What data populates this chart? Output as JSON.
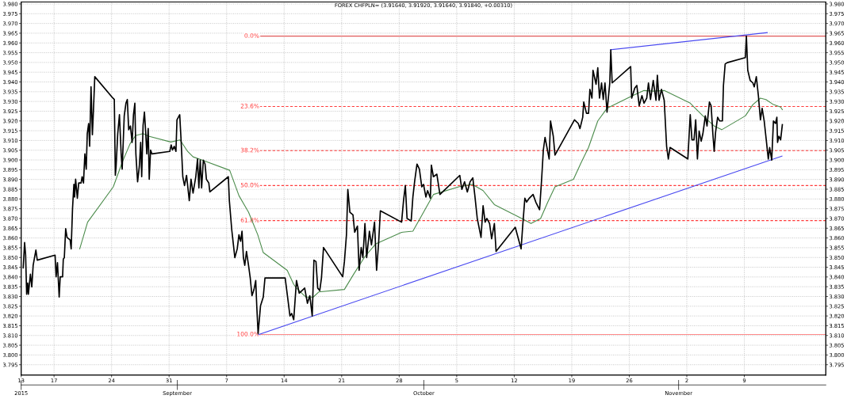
{
  "chart_data": {
    "type": "line",
    "title": "FOREX CHFPLN= (3.91640, 3.91920, 3.91640, 3.91840, +0.00310)",
    "xlim": [
      "2015-08-13T00:00",
      "2015-11-18T22:00"
    ],
    "xticks": [
      {
        "value": "2015-08-13",
        "label": "13"
      },
      {
        "value": "2015-08-17",
        "label": "17"
      },
      {
        "value": "2015-08-24",
        "label": "24"
      },
      {
        "value": "2015-08-31",
        "label": "31"
      },
      {
        "value": "2015-09-07",
        "label": "7"
      },
      {
        "value": "2015-09-14",
        "label": "14"
      },
      {
        "value": "2015-09-21",
        "label": "21"
      },
      {
        "value": "2015-09-28",
        "label": "28"
      },
      {
        "value": "2015-10-05",
        "label": "5"
      },
      {
        "value": "2015-10-12",
        "label": "12"
      },
      {
        "value": "2015-10-19",
        "label": "19"
      },
      {
        "value": "2015-10-26",
        "label": "26"
      },
      {
        "value": "2015-11-02",
        "label": "2"
      },
      {
        "value": "2015-11-09",
        "label": "9"
      }
    ],
    "x2lim": [
      "2015-08-13T00:00",
      "2015-11-18T22:00"
    ],
    "x2ticks": [
      {
        "value": "2015-08-13",
        "label": "2015"
      },
      {
        "value": "2015-09-01",
        "label": "September"
      },
      {
        "value": "2015-10-01",
        "label": "October"
      },
      {
        "value": "2015-11-01",
        "label": "November"
      }
    ],
    "ylim": [
      3.7897,
      3.981
    ],
    "yticks": [
      {
        "value": 3.795,
        "label": "3.795"
      },
      {
        "value": 3.8,
        "label": "3.800"
      },
      {
        "value": 3.805,
        "label": "3.805"
      },
      {
        "value": 3.81,
        "label": "3.810"
      },
      {
        "value": 3.815,
        "label": "3.815"
      },
      {
        "value": 3.82,
        "label": "3.820"
      },
      {
        "value": 3.825,
        "label": "3.825"
      },
      {
        "value": 3.83,
        "label": "3.830"
      },
      {
        "value": 3.835,
        "label": "3.835"
      },
      {
        "value": 3.84,
        "label": "3.840"
      },
      {
        "value": 3.845,
        "label": "3.845"
      },
      {
        "value": 3.85,
        "label": "3.850"
      },
      {
        "value": 3.855,
        "label": "3.855"
      },
      {
        "value": 3.86,
        "label": "3.860"
      },
      {
        "value": 3.865,
        "label": "3.865"
      },
      {
        "value": 3.87,
        "label": "3.870"
      },
      {
        "value": 3.875,
        "label": "3.875"
      },
      {
        "value": 3.88,
        "label": "3.880"
      },
      {
        "value": 3.885,
        "label": "3.885"
      },
      {
        "value": 3.89,
        "label": "3.890"
      },
      {
        "value": 3.895,
        "label": "3.895"
      },
      {
        "value": 3.9,
        "label": "3.900"
      },
      {
        "value": 3.905,
        "label": "3.905"
      },
      {
        "value": 3.91,
        "label": "3.910"
      },
      {
        "value": 3.915,
        "label": "3.915"
      },
      {
        "value": 3.92,
        "label": "3.920"
      },
      {
        "value": 3.925,
        "label": "3.925"
      },
      {
        "value": 3.93,
        "label": "3.930"
      },
      {
        "value": 3.935,
        "label": "3.935"
      },
      {
        "value": 3.94,
        "label": "3.940"
      },
      {
        "value": 3.945,
        "label": "3.945"
      },
      {
        "value": 3.95,
        "label": "3.950"
      },
      {
        "value": 3.955,
        "label": "3.955"
      },
      {
        "value": 3.96,
        "label": "3.960"
      },
      {
        "value": 3.965,
        "label": "3.965"
      },
      {
        "value": 3.97,
        "label": "3.970"
      },
      {
        "value": 3.975,
        "label": "3.975"
      },
      {
        "value": 3.98,
        "label": "3.980"
      }
    ],
    "y2lim": [
      3.7897,
      3.981
    ],
    "y2ticks": [
      {
        "value": 3.795,
        "label": "3.795"
      },
      {
        "value": 3.8,
        "label": "3.800"
      },
      {
        "value": 3.805,
        "label": "3.805"
      },
      {
        "value": 3.81,
        "label": "3.810"
      },
      {
        "value": 3.815,
        "label": "3.815"
      },
      {
        "value": 3.82,
        "label": "3.820"
      },
      {
        "value": 3.825,
        "label": "3.825"
      },
      {
        "value": 3.83,
        "label": "3.830"
      },
      {
        "value": 3.835,
        "label": "3.835"
      },
      {
        "value": 3.84,
        "label": "3.840"
      },
      {
        "value": 3.845,
        "label": "3.845"
      },
      {
        "value": 3.85,
        "label": "3.850"
      },
      {
        "value": 3.855,
        "label": "3.855"
      },
      {
        "value": 3.86,
        "label": "3.860"
      },
      {
        "value": 3.865,
        "label": "3.865"
      },
      {
        "value": 3.87,
        "label": "3.870"
      },
      {
        "value": 3.875,
        "label": "3.875"
      },
      {
        "value": 3.88,
        "label": "3.880"
      },
      {
        "value": 3.885,
        "label": "3.885"
      },
      {
        "value": 3.89,
        "label": "3.890"
      },
      {
        "value": 3.895,
        "label": "3.895"
      },
      {
        "value": 3.9,
        "label": "3.900"
      },
      {
        "value": 3.905,
        "label": "3.905"
      },
      {
        "value": 3.91,
        "label": "3.910"
      },
      {
        "value": 3.915,
        "label": "3.915"
      },
      {
        "value": 3.92,
        "label": "3.920"
      },
      {
        "value": 3.925,
        "label": "3.925"
      },
      {
        "value": 3.93,
        "label": "3.930"
      },
      {
        "value": 3.935,
        "label": "3.935"
      },
      {
        "value": 3.94,
        "label": "3.940"
      },
      {
        "value": 3.945,
        "label": "3.945"
      },
      {
        "value": 3.95,
        "label": "3.950"
      },
      {
        "value": 3.955,
        "label": "3.955"
      },
      {
        "value": 3.96,
        "label": "3.960"
      },
      {
        "value": 3.965,
        "label": "3.965"
      },
      {
        "value": 3.97,
        "label": "3.970"
      },
      {
        "value": 3.975,
        "label": "3.975"
      },
      {
        "value": 3.98,
        "label": "3.980"
      }
    ],
    "grid": true,
    "series": [
      {
        "color": "#000000",
        "x": [
          "2015-08-13T06:00",
          "2015-08-13T10:00",
          "2015-08-13T13:00",
          "2015-08-13T16:00",
          "2015-08-13T19:00",
          "2015-08-13T21:00",
          "2015-08-14T03:00",
          "2015-08-14T07:00",
          "2015-08-14T11:00",
          "2015-08-14T15:00",
          "2015-08-14T19:00",
          "2015-08-14T23:00",
          "2015-08-17T03:00",
          "2015-08-17T06:00",
          "2015-08-17T10:00",
          "2015-08-17T15:00",
          "2015-08-17T18:00",
          "2015-08-18T01:00",
          "2015-08-18T03:00",
          "2015-08-18T06:00",
          "2015-08-18T10:00",
          "2015-08-18T14:00",
          "2015-08-18T23:00",
          "2015-08-19T02:00",
          "2015-08-19T06:00",
          "2015-08-19T10:00",
          "2015-08-19T12:00",
          "2015-08-19T15:00",
          "2015-08-19T20:00",
          "2015-08-20T00:00",
          "2015-08-20T07:00",
          "2015-08-20T10:00",
          "2015-08-20T14:00",
          "2015-08-20T18:00",
          "2015-08-20T22:00",
          "2015-08-21T01:00",
          "2015-08-21T05:00",
          "2015-08-21T08:00",
          "2015-08-21T12:00",
          "2015-08-21T16:00",
          "2015-08-21T19:00",
          "2015-08-21T23:00",
          "2015-08-24T04:00",
          "2015-08-24T08:00",
          "2015-08-24T11:00",
          "2015-08-24T13:00",
          "2015-08-24T18:00",
          "2015-08-24T23:00",
          "2015-08-25T04:00",
          "2015-08-25T07:00",
          "2015-08-25T13:00",
          "2015-08-25T18:00",
          "2015-08-25T22:00",
          "2015-08-26T02:00",
          "2015-08-26T07:00",
          "2015-08-26T12:00",
          "2015-08-26T16:00",
          "2015-08-26T20:00",
          "2015-08-26T23:00",
          "2015-08-27T04:00",
          "2015-08-27T09:00",
          "2015-08-27T13:00",
          "2015-08-27T16:00",
          "2015-08-27T20:00",
          "2015-08-28T00:00",
          "2015-08-28T03:00",
          "2015-08-28T07:00",
          "2015-08-28T11:00",
          "2015-08-28T14:00",
          "2015-08-28T18:00",
          "2015-08-28T22:00",
          "2015-08-31T02:00",
          "2015-08-31T06:00",
          "2015-08-31T10:00",
          "2015-08-31T15:00",
          "2015-08-31T20:00",
          "2015-08-31T23:00",
          "2015-09-01T07:00",
          "2015-09-01T11:00",
          "2015-09-01T16:00",
          "2015-09-01T21:00",
          "2015-09-02T03:00",
          "2015-09-02T11:00",
          "2015-09-02T16:00",
          "2015-09-02T22:00",
          "2015-09-03T06:00",
          "2015-09-03T11:00",
          "2015-09-03T15:00",
          "2015-09-03T19:00",
          "2015-09-03T23:00",
          "2015-09-04T04:00",
          "2015-09-04T09:00",
          "2015-09-04T13:00",
          "2015-09-04T20:00",
          "2015-09-04T23:00",
          "2015-09-07T05:00",
          "2015-09-07T08:00",
          "2015-09-07T15:00",
          "2015-09-08T00:00",
          "2015-09-08T07:00",
          "2015-09-08T12:00",
          "2015-09-08T17:00",
          "2015-09-08T21:00",
          "2015-09-09T01:00",
          "2015-09-09T05:00",
          "2015-09-09T10:00",
          "2015-09-09T16:00",
          "2015-09-09T21:00",
          "2015-09-10T02:00",
          "2015-09-10T08:00",
          "2015-09-10T13:00",
          "2015-09-10T16:00",
          "2015-09-10T20:00",
          "2015-09-11T03:00",
          "2015-09-11T11:00",
          "2015-09-11T16:00",
          "2015-09-14T03:00",
          "2015-09-14T11:00",
          "2015-09-14T17:00",
          "2015-09-14T22:00",
          "2015-09-15T04:00",
          "2015-09-15T12:00",
          "2015-09-15T20:00",
          "2015-09-16T04:00",
          "2015-09-16T12:00",
          "2015-09-16T20:00",
          "2015-09-17T03:00",
          "2015-09-17T10:00",
          "2015-09-17T15:00",
          "2015-09-17T21:00",
          "2015-09-18T02:00",
          "2015-09-18T08:00",
          "2015-09-18T13:00",
          "2015-09-18T19:00",
          "2015-09-21T03:00",
          "2015-09-21T08:00",
          "2015-09-21T14:00",
          "2015-09-21T18:00",
          "2015-09-22T00:00",
          "2015-09-22T09:00",
          "2015-09-22T14:00",
          "2015-09-22T22:00",
          "2015-09-23T03:00",
          "2015-09-23T09:00",
          "2015-09-23T14:00",
          "2015-09-23T20:00",
          "2015-09-24T01:00",
          "2015-09-24T09:00",
          "2015-09-24T15:00",
          "2015-09-25T00:00",
          "2015-09-25T06:00",
          "2015-09-25T12:00",
          "2015-09-25T17:00",
          "2015-09-28T07:00",
          "2015-09-28T13:00",
          "2015-09-28T18:00",
          "2015-09-28T23:00",
          "2015-09-29T11:00",
          "2015-09-29T16:00",
          "2015-09-29T21:00",
          "2015-09-30T04:00",
          "2015-09-30T11:00",
          "2015-09-30T18:00",
          "2015-09-30T23:00",
          "2015-10-01T06:00",
          "2015-10-01T11:00",
          "2015-10-01T19:00",
          "2015-10-01T22:00",
          "2015-10-02T04:00",
          "2015-10-02T14:00",
          "2015-10-02T23:00",
          "2015-10-05T09:00",
          "2015-10-05T15:00",
          "2015-10-05T23:00",
          "2015-10-06T07:00",
          "2015-10-06T15:00",
          "2015-10-06T23:00",
          "2015-10-07T05:00",
          "2015-10-07T12:00",
          "2015-10-07T23:00",
          "2015-10-08T05:00",
          "2015-10-08T11:00",
          "2015-10-08T16:00",
          "2015-10-09T00:00",
          "2015-10-09T06:00",
          "2015-10-09T14:00",
          "2015-10-09T19:00",
          "2015-10-12T03:00",
          "2015-10-12T12:00",
          "2015-10-12T20:00",
          "2015-10-13T01:00",
          "2015-10-13T07:00",
          "2015-10-13T12:00",
          "2015-10-13T20:00",
          "2015-10-14T07:00",
          "2015-10-14T15:00",
          "2015-10-15T02:00",
          "2015-10-15T08:00",
          "2015-10-15T13:00",
          "2015-10-15T18:00",
          "2015-10-16T06:00",
          "2015-10-16T10:00",
          "2015-10-16T18:00",
          "2015-10-16T23:00",
          "2015-10-19T08:00",
          "2015-10-19T19:00",
          "2015-10-20T00:00",
          "2015-10-20T08:00",
          "2015-10-20T11:00",
          "2015-10-20T19:00",
          "2015-10-21T01:00",
          "2015-10-21T05:00",
          "2015-10-21T11:00",
          "2015-10-21T14:00",
          "2015-10-21T23:00",
          "2015-10-22T04:00",
          "2015-10-22T09:00",
          "2015-10-22T15:00",
          "2015-10-22T20:00",
          "2015-10-23T01:00",
          "2015-10-23T07:00",
          "2015-10-23T15:00",
          "2015-10-23T18:00",
          "2015-10-23T22:00",
          "2015-10-26T04:00",
          "2015-10-26T07:00",
          "2015-10-26T16:00",
          "2015-10-26T22:00",
          "2015-10-27T05:00",
          "2015-10-27T13:00",
          "2015-10-27T19:00",
          "2015-10-28T03:00",
          "2015-10-28T08:00",
          "2015-10-28T14:00",
          "2015-10-28T22:00",
          "2015-10-29T06:00",
          "2015-10-29T10:00",
          "2015-10-29T15:00",
          "2015-10-29T22:00",
          "2015-10-30T06:00",
          "2015-10-30T13:00",
          "2015-10-30T18:00",
          "2015-10-30T23:00",
          "2015-11-02T03:00",
          "2015-11-02T10:00",
          "2015-11-02T15:00",
          "2015-11-02T21:00",
          "2015-11-03T02:00",
          "2015-11-03T07:00",
          "2015-11-03T12:00",
          "2015-11-03T18:00",
          "2015-11-03T23:00",
          "2015-11-04T06:00",
          "2015-11-04T11:00",
          "2015-11-04T18:00",
          "2015-11-04T23:00",
          "2015-11-05T04:00",
          "2015-11-05T08:00",
          "2015-11-05T12:00",
          "2015-11-05T18:00",
          "2015-11-06T00:00",
          "2015-11-06T08:00",
          "2015-11-06T11:00",
          "2015-11-06T16:00",
          "2015-11-06T22:00",
          "2015-11-09T03:00",
          "2015-11-09T06:00",
          "2015-11-09T10:00",
          "2015-11-09T17:00",
          "2015-11-10T01:00",
          "2015-11-10T05:00",
          "2015-11-10T11:00",
          "2015-11-10T17:00",
          "2015-11-10T23:00",
          "2015-11-11T04:00",
          "2015-11-11T10:00",
          "2015-11-11T16:00",
          "2015-11-11T22:00",
          "2015-11-12T02:00",
          "2015-11-12T08:00",
          "2015-11-12T13:00",
          "2015-11-12T19:00",
          "2015-11-12T23:00",
          "2015-11-13T01:00",
          "2015-11-13T05:00",
          "2015-11-13T10:00",
          "2015-11-13T15:00"
        ],
        "values": [
          3.8447,
          3.8577,
          3.8512,
          3.8311,
          3.8369,
          3.8311,
          3.8414,
          3.8349,
          3.846,
          3.8499,
          3.8538,
          3.8486,
          3.8512,
          3.8401,
          3.8473,
          3.8297,
          3.8401,
          3.8401,
          3.8492,
          3.8499,
          3.8648,
          3.8603,
          3.859,
          3.8544,
          3.8752,
          3.8875,
          3.881,
          3.8901,
          3.8804,
          3.8882,
          3.8882,
          3.8914,
          3.8882,
          3.9031,
          3.8953,
          3.9135,
          3.9187,
          3.907,
          3.9375,
          3.9129,
          3.9252,
          3.9427,
          3.9317,
          3.931,
          3.8921,
          3.896,
          3.9135,
          3.9232,
          3.9031,
          3.8953,
          3.9226,
          3.9291,
          3.931,
          3.9155,
          3.9174,
          3.909,
          3.9232,
          3.9291,
          3.9031,
          3.8888,
          3.8966,
          3.909,
          3.8914,
          3.9177,
          3.9245,
          3.9161,
          3.9031,
          3.9161,
          3.8901,
          3.9051,
          3.9031,
          3.9044,
          3.9077,
          3.9051,
          3.907,
          3.9044,
          3.9206,
          3.9232,
          3.9103,
          3.8914,
          3.8869,
          3.8921,
          3.8791,
          3.8901,
          3.883,
          3.8914,
          3.9005,
          3.8856,
          3.8999,
          3.8856,
          3.8999,
          3.8979,
          3.8901,
          3.8882,
          3.8836,
          3.8914,
          3.8791,
          3.8642,
          3.8499,
          3.8544,
          3.8616,
          3.8583,
          3.8635,
          3.8499,
          3.846,
          3.8531,
          3.846,
          3.8395,
          3.8304,
          3.8336,
          3.8382,
          3.8252,
          3.8109,
          3.8252,
          3.8297,
          3.8395,
          3.8395,
          3.8284,
          3.82,
          3.8213,
          3.8181,
          3.8382,
          3.8317,
          3.833,
          3.8343,
          3.8265,
          3.8304,
          3.82,
          3.8486,
          3.8479,
          3.8343,
          3.833,
          3.8395,
          3.8551,
          3.8401,
          3.8479,
          3.8616,
          3.8849,
          3.8732,
          3.8719,
          3.8629,
          3.8661,
          3.8434,
          3.8551,
          3.8499,
          3.8674,
          3.8499,
          3.8635,
          3.8564,
          3.8681,
          3.8434,
          3.8577,
          3.8739,
          3.8681,
          3.8797,
          3.8869,
          3.87,
          3.8687,
          3.881,
          3.8888,
          3.8979,
          3.8953,
          3.8862,
          3.8875,
          3.881,
          3.8843,
          3.8804,
          3.8973,
          3.8914,
          3.8927,
          3.8823,
          3.8921,
          3.8849,
          3.8888,
          3.8836,
          3.8888,
          3.8908,
          3.8817,
          3.87,
          3.8603,
          3.8765,
          3.8681,
          3.87,
          3.8674,
          3.8596,
          3.8674,
          3.8531,
          3.8655,
          3.8596,
          3.8544,
          3.8668,
          3.8804,
          3.8784,
          3.8804,
          3.8823,
          3.8784,
          3.8745,
          3.8901,
          3.9051,
          3.9116,
          3.9005,
          3.92,
          3.9122,
          3.9025,
          3.9206,
          3.9187,
          3.9161,
          3.9219,
          3.9297,
          3.9239,
          3.9239,
          3.9362,
          3.9317,
          3.946,
          3.9388,
          3.9473,
          3.9317,
          3.9395,
          3.931,
          3.9395,
          3.9245,
          3.9395,
          3.9564,
          3.9395,
          3.9479,
          3.9317,
          3.9369,
          3.9382,
          3.9278,
          3.933,
          3.9291,
          3.9317,
          3.9395,
          3.931,
          3.9408,
          3.9306,
          3.9434,
          3.9306,
          3.9362,
          3.9306,
          3.907,
          3.9005,
          3.9064,
          3.9005,
          3.9232,
          3.9103,
          3.9103,
          3.9206,
          3.9005,
          3.9148,
          3.9096,
          3.9135,
          3.9226,
          3.9174,
          3.9297,
          3.9278,
          3.9135,
          3.9044,
          3.9142,
          3.9219,
          3.92,
          3.92,
          3.9382,
          3.9492,
          3.9499,
          3.9525,
          3.9635,
          3.946,
          3.9408,
          3.9395,
          3.9375,
          3.9427,
          3.933,
          3.9206,
          3.9265,
          3.92,
          3.9103,
          3.9005,
          3.9064,
          3.8999,
          3.92,
          3.9187,
          3.9219,
          3.909,
          3.9122,
          3.9103,
          3.9181
        ]
      },
      {
        "color": "#4c8c4c",
        "x": [
          "2015-08-20T03:00",
          "2015-08-21T02:00",
          "2015-08-24T05:00",
          "2015-08-25T08:00",
          "2015-08-26T06:00",
          "2015-08-26T22:00",
          "2015-08-27T20:00",
          "2015-08-28T12:00",
          "2015-08-31T05:00",
          "2015-09-01T08:00",
          "2015-09-02T06:00",
          "2015-09-02T22:00",
          "2015-09-04T01:00",
          "2015-09-07T09:00",
          "2015-09-08T12:00",
          "2015-09-09T16:00",
          "2015-09-10T19:00",
          "2015-09-11T11:00",
          "2015-09-14T09:00",
          "2015-09-15T04:00",
          "2015-09-15T12:00",
          "2015-09-16T15:00",
          "2015-09-17T13:00",
          "2015-09-18T05:00",
          "2015-09-21T08:00",
          "2015-09-22T11:00",
          "2015-09-23T20:00",
          "2015-09-25T04:00",
          "2015-09-28T07:00",
          "2015-09-29T16:00",
          "2015-09-30T19:00",
          "2015-10-02T04:00",
          "2015-10-05T06:00",
          "2015-10-06T21:00",
          "2015-10-08T05:00",
          "2015-10-09T14:00",
          "2015-10-12T22:00",
          "2015-10-14T01:00",
          "2015-10-15T05:00",
          "2015-10-16T02:00",
          "2015-10-16T23:00",
          "2015-10-19T05:00",
          "2015-10-20T03:00",
          "2015-10-21T01:00",
          "2015-10-22T04:00",
          "2015-10-23T07:00",
          "2015-10-26T10:00",
          "2015-10-27T19:00",
          "2015-10-28T22:00",
          "2015-10-30T06:00",
          "2015-11-02T10:00",
          "2015-11-03T23:00",
          "2015-11-05T08:00",
          "2015-11-06T06:00",
          "2015-11-09T03:00",
          "2015-11-10T01:00",
          "2015-11-10T23:00",
          "2015-11-11T15:00",
          "2015-11-12T13:00",
          "2015-11-13T10:00",
          "2015-11-13T15:00"
        ],
        "values": [
          3.8544,
          3.8681,
          3.8862,
          3.8992,
          3.9083,
          3.9125,
          3.9135,
          3.9122,
          3.9092,
          3.9103,
          3.9044,
          3.9016,
          3.8999,
          3.8947,
          3.8817,
          3.8732,
          3.8616,
          3.8525,
          3.8434,
          3.8362,
          3.8343,
          3.8297,
          3.8297,
          3.8323,
          3.8336,
          3.8414,
          3.8505,
          3.857,
          3.8629,
          3.8635,
          3.8719,
          3.8823,
          3.8862,
          3.8875,
          3.8843,
          3.8771,
          3.87,
          3.8674,
          3.87,
          3.8784,
          3.8862,
          3.8901,
          3.8985,
          3.9064,
          3.92,
          3.9265,
          3.933,
          3.9356,
          3.9353,
          3.9356,
          3.9291,
          3.9226,
          3.9174,
          3.9155,
          3.9226,
          3.9284,
          3.9317,
          3.931,
          3.9284,
          3.9271,
          3.9258
        ]
      },
      {
        "color": "#4848f0",
        "x": [
          "2015-09-10T22:00",
          "2015-11-13T14:00"
        ],
        "values": [
          3.8105,
          3.902
        ]
      },
      {
        "color": "#4848f0",
        "x": [
          "2015-10-23T17:00",
          "2015-11-11T19:00"
        ],
        "values": [
          3.9565,
          3.9653
        ]
      }
    ],
    "ref_lines": [
      {
        "axis": "y",
        "value": 3.9635,
        "color": "#e05a5a",
        "line_style": "solid"
      },
      {
        "axis": "y",
        "value": 3.9274,
        "color": "#ff3b3b",
        "line_style": "dashed"
      },
      {
        "axis": "y",
        "value": 3.9048,
        "color": "#ff3b3b",
        "line_style": "dashed"
      },
      {
        "axis": "y",
        "value": 3.8869,
        "color": "#ff3b3b",
        "line_style": "dashed"
      },
      {
        "axis": "y",
        "value": 3.8689,
        "color": "#ff3b3b",
        "line_style": "dashed"
      },
      {
        "axis": "y",
        "value": 3.8105,
        "color": "#ff8a8a",
        "line_style": "solid"
      }
    ],
    "annotations": [
      {
        "text": "0.0%",
        "x": "2015-09-11T06:00",
        "y": 3.9635
      },
      {
        "text": "23.6%",
        "x": "2015-09-11T06:00",
        "y": 3.9274
      },
      {
        "text": "38.2%",
        "x": "2015-09-11T06:00",
        "y": 3.9048
      },
      {
        "text": "50.0%",
        "x": "2015-09-11T06:00",
        "y": 3.8869
      },
      {
        "text": "61.8%",
        "x": "2015-09-11T06:00",
        "y": 3.8689
      },
      {
        "text": "100.0%",
        "x": "2015-09-11T06:00",
        "y": 3.8105
      }
    ]
  }
}
